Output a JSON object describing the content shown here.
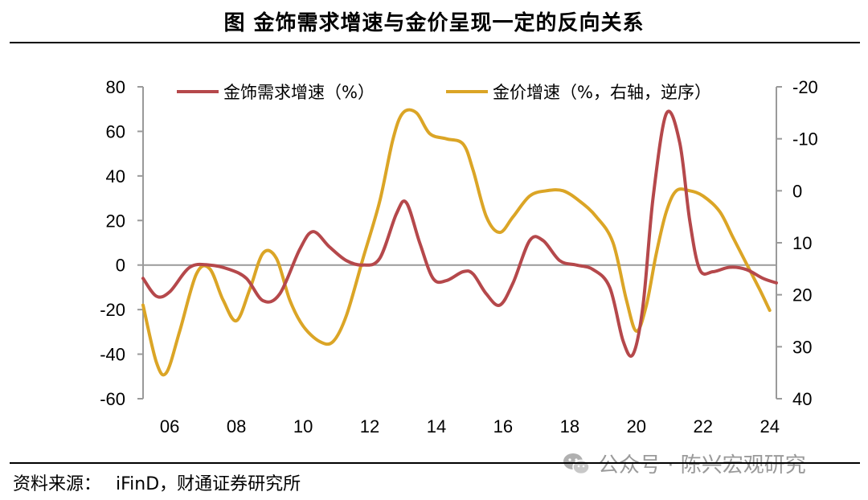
{
  "title": "图  金饰需求增速与金价呈现一定的反向关系",
  "source": {
    "label": "资料来源：",
    "text": "iFinD，财通证券研究所"
  },
  "watermark": {
    "icon": "wechat-icon",
    "text": "公众号 · 陈兴宏观研究"
  },
  "chart_data": {
    "type": "line",
    "x_ticks": [
      "06",
      "08",
      "10",
      "12",
      "14",
      "16",
      "18",
      "20",
      "22",
      "24"
    ],
    "xlim": [
      2005.2,
      2024.2
    ],
    "y_left": {
      "ticks": [
        "80",
        "60",
        "40",
        "20",
        "0",
        "-20",
        "-40",
        "-60"
      ],
      "ylim": [
        -60,
        80
      ]
    },
    "y_right": {
      "ticks": [
        "-20",
        "-10",
        "0",
        "10",
        "20",
        "30",
        "40"
      ],
      "ylim": [
        -20,
        40
      ],
      "reversed": true
    },
    "zero_line": true,
    "legend_position": "top",
    "series": [
      {
        "name": "金饰需求增速（%）",
        "axis": "left",
        "color": "#B5484B",
        "points": [
          [
            2005.2,
            -6
          ],
          [
            2005.6,
            -14
          ],
          [
            2006.0,
            -12
          ],
          [
            2006.6,
            -1
          ],
          [
            2007.2,
            0
          ],
          [
            2007.8,
            -2
          ],
          [
            2008.3,
            -6
          ],
          [
            2008.8,
            -16
          ],
          [
            2009.3,
            -13
          ],
          [
            2009.9,
            7
          ],
          [
            2010.3,
            15
          ],
          [
            2010.8,
            8
          ],
          [
            2011.3,
            2
          ],
          [
            2011.8,
            0
          ],
          [
            2012.3,
            3
          ],
          [
            2012.8,
            23
          ],
          [
            2013.1,
            28
          ],
          [
            2013.5,
            10
          ],
          [
            2013.9,
            -6
          ],
          [
            2014.3,
            -7
          ],
          [
            2014.8,
            -3
          ],
          [
            2015.1,
            -4
          ],
          [
            2015.5,
            -13
          ],
          [
            2015.9,
            -18
          ],
          [
            2016.3,
            -8
          ],
          [
            2016.8,
            11
          ],
          [
            2017.2,
            11
          ],
          [
            2017.7,
            2
          ],
          [
            2018.2,
            0
          ],
          [
            2018.7,
            -2
          ],
          [
            2019.2,
            -10
          ],
          [
            2019.6,
            -34
          ],
          [
            2019.9,
            -40
          ],
          [
            2020.2,
            -18
          ],
          [
            2020.5,
            30
          ],
          [
            2020.9,
            68
          ],
          [
            2021.3,
            55
          ],
          [
            2021.6,
            20
          ],
          [
            2021.9,
            -2
          ],
          [
            2022.3,
            -3
          ],
          [
            2022.8,
            -1
          ],
          [
            2023.3,
            -2
          ],
          [
            2023.8,
            -6
          ],
          [
            2024.2,
            -8
          ]
        ]
      },
      {
        "name": "金价增速（%，右轴，逆序）",
        "axis": "right",
        "color": "#DBA526",
        "points": [
          [
            2005.2,
            22
          ],
          [
            2005.6,
            33
          ],
          [
            2005.9,
            35
          ],
          [
            2006.3,
            27
          ],
          [
            2006.8,
            16
          ],
          [
            2007.2,
            15
          ],
          [
            2007.6,
            21
          ],
          [
            2008.0,
            25
          ],
          [
            2008.4,
            19
          ],
          [
            2008.8,
            12
          ],
          [
            2009.2,
            13
          ],
          [
            2009.6,
            21
          ],
          [
            2010.0,
            26
          ],
          [
            2010.5,
            29
          ],
          [
            2010.9,
            29
          ],
          [
            2011.3,
            24
          ],
          [
            2011.8,
            13
          ],
          [
            2012.3,
            2
          ],
          [
            2012.7,
            -10
          ],
          [
            2013.0,
            -15
          ],
          [
            2013.4,
            -15
          ],
          [
            2013.8,
            -11
          ],
          [
            2014.3,
            -10
          ],
          [
            2014.8,
            -9
          ],
          [
            2015.1,
            -4
          ],
          [
            2015.5,
            5
          ],
          [
            2015.9,
            8
          ],
          [
            2016.3,
            5
          ],
          [
            2016.8,
            1
          ],
          [
            2017.3,
            0
          ],
          [
            2017.8,
            0
          ],
          [
            2018.3,
            2
          ],
          [
            2018.8,
            5
          ],
          [
            2019.3,
            10
          ],
          [
            2019.7,
            21
          ],
          [
            2020.0,
            27
          ],
          [
            2020.3,
            22
          ],
          [
            2020.6,
            12
          ],
          [
            2020.9,
            4
          ],
          [
            2021.2,
            0
          ],
          [
            2021.6,
            0
          ],
          [
            2022.0,
            1
          ],
          [
            2022.5,
            4
          ],
          [
            2022.9,
            9
          ],
          [
            2023.3,
            14
          ],
          [
            2023.7,
            19
          ],
          [
            2024.0,
            23
          ]
        ]
      }
    ]
  }
}
